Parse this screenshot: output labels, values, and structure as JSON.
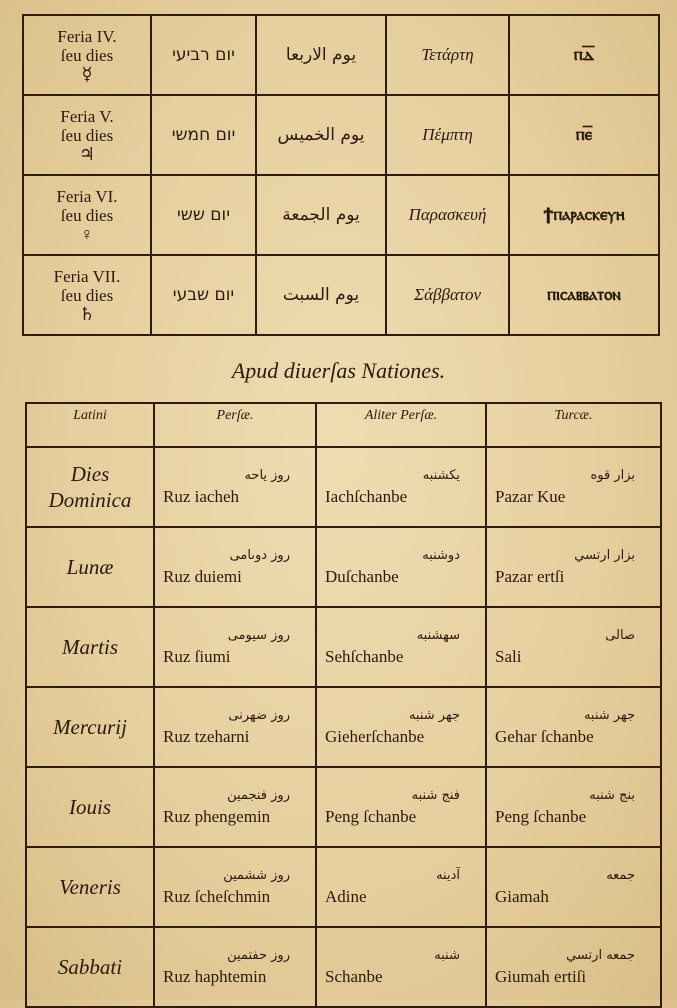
{
  "top_table": {
    "rows": [
      {
        "latin": "Feria IV.",
        "latin2": "ſeu dies",
        "symbol": "☿",
        "hebrew": "יום רביעי",
        "arabic": "يوم الاربعا",
        "greek": "Τετάρτη",
        "coptic": "ⲡⲇ̅"
      },
      {
        "latin": "Feria V.",
        "latin2": "ſeu dies",
        "symbol": "♃",
        "hebrew": "יום חמשי",
        "arabic": "يوم الخميس",
        "greek": "Πέμπτη",
        "coptic": "ⲡⲉ̅"
      },
      {
        "latin": "Feria VI.",
        "latin2": "ſeu dies",
        "symbol": "♀",
        "hebrew": "יום ששי",
        "arabic": "يوم الجمعة",
        "greek": "Παρασκευή",
        "coptic": "ϯⲡⲁⲣⲁⲥⲕⲉⲩⲏ"
      },
      {
        "latin": "Feria VII.",
        "latin2": "ſeu dies",
        "symbol": "♄",
        "hebrew": "יום שבעי",
        "arabic": "يوم السبت",
        "greek": "Σάββατον",
        "coptic": "ⲡⲓⲥⲁⲃⲃⲁⲧⲟⲛ"
      }
    ]
  },
  "section_title": "Apud diuerſas Nationes.",
  "bottom_table": {
    "headers": [
      "Latini",
      "Perſæ.",
      "Aliter Perſæ.",
      "Turcæ."
    ],
    "rows": [
      {
        "latin": "Dies Dominica",
        "persae_ar": "روز ياحه",
        "persae": "Ruz iacheh",
        "aliter_ar": "يكشنبه",
        "aliter": "Iachſchanbe",
        "turcae_ar": "بزار قوه",
        "turcae": "Pazar Kue"
      },
      {
        "latin": "Lunæ",
        "persae_ar": "روز دوىامى",
        "persae": "Ruz duiemi",
        "aliter_ar": "دوشنبه",
        "aliter": "Duſchanbe",
        "turcae_ar": "بزار ارتسي",
        "turcae": "Pazar ertſi"
      },
      {
        "latin": "Martis",
        "persae_ar": "روز سيومى",
        "persae": "Ruz ſiumi",
        "aliter_ar": "سهشنبه",
        "aliter": "Sehſchanbe",
        "turcae_ar": "صالى",
        "turcae": "Sali"
      },
      {
        "latin": "Mercurij",
        "persae_ar": "روز ضهرنى",
        "persae": "Ruz tzeharni",
        "aliter_ar": "جهر شنبه",
        "aliter": "Gieherſchanbe",
        "turcae_ar": "جهر شنبه",
        "turcae": "Gehar ſchanbe"
      },
      {
        "latin": "Iouis",
        "persae_ar": "روز فنجمين",
        "persae": "Ruz phengemin",
        "aliter_ar": "فنج شنبه",
        "aliter": "Peng ſchanbe",
        "turcae_ar": "بنج شنبه",
        "turcae": "Peng ſchanbe"
      },
      {
        "latin": "Veneris",
        "persae_ar": "روز ششمين",
        "persae": "Ruz ſcheſchmin",
        "aliter_ar": "آدينه",
        "aliter": "Adine",
        "turcae_ar": "جمعه",
        "turcae": "Giamah"
      },
      {
        "latin": "Sabbati",
        "persae_ar": "روز حفتمين",
        "persae": "Ruz haphtemin",
        "aliter_ar": "شنبه",
        "aliter": "Schanbe",
        "turcae_ar": "جمعه ارتسي",
        "turcae": "Giumah ertiſi"
      }
    ]
  }
}
